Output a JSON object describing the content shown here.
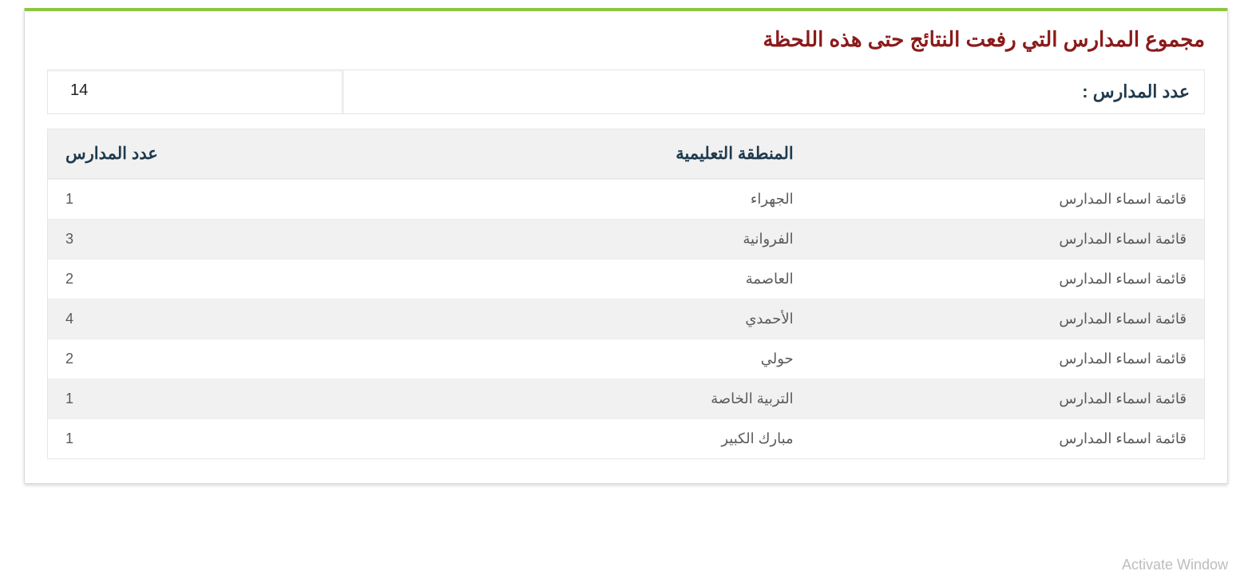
{
  "panel": {
    "title": "مجموع المدارس التي رفعت النتائج حتى هذه اللحظة",
    "summary_label": "عدد المدارس :",
    "summary_value": "14"
  },
  "table": {
    "columns": {
      "link": "",
      "region": "المنطقة التعليمية",
      "count": "عدد المدارس"
    },
    "link_label": "قائمة اسماء المدارس",
    "rows": [
      {
        "region": "الجهراء",
        "count": "1"
      },
      {
        "region": "الفروانية",
        "count": "3"
      },
      {
        "region": "العاصمة",
        "count": "2"
      },
      {
        "region": "الأحمدي",
        "count": "4"
      },
      {
        "region": "حولي",
        "count": "2"
      },
      {
        "region": "التربية الخاصة",
        "count": "1"
      },
      {
        "region": "مبارك الكبير",
        "count": "1"
      }
    ]
  },
  "watermark": {
    "line1": "Activate Window"
  },
  "style": {
    "accent_top": "#8cc63f",
    "title_color": "#8b1a1a",
    "header_text_color": "#1f3a4d",
    "row_alt_bg": "#f1f1f1",
    "border_color": "#e6e6e6",
    "text_muted": "#5a5a5a",
    "watermark_color": "#bdbdbd"
  }
}
